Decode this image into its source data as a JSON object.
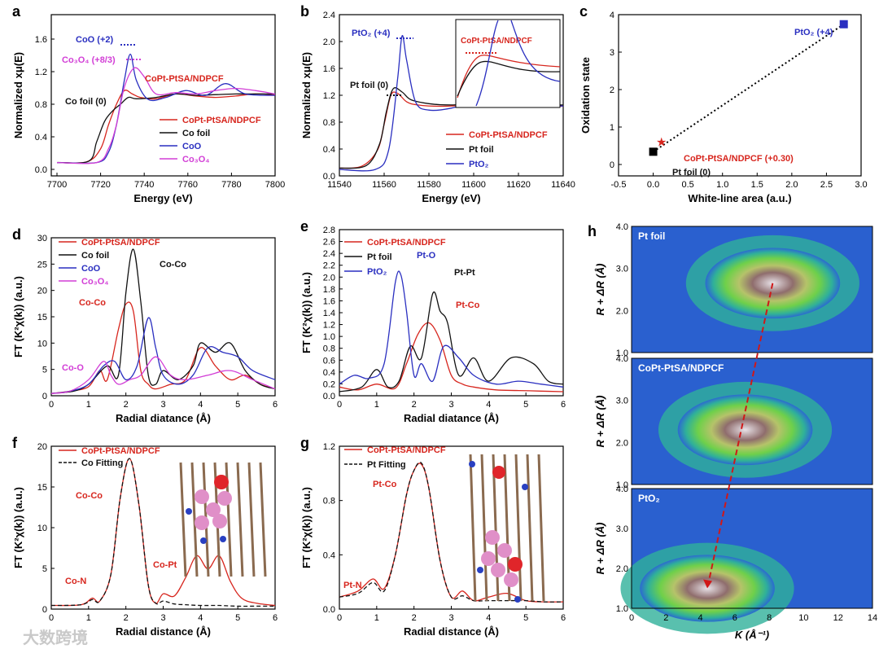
{
  "colors": {
    "red": "#d7261e",
    "black": "#111111",
    "blue": "#2a2fc0",
    "magenta": "#d23ed6",
    "gray": "#777777"
  },
  "watermark": "大数跨境",
  "panels": {
    "a": {
      "letter": "a",
      "xlabel": "Energy (eV)",
      "ylabel": "Normalized xμ(E)",
      "xticks": [
        "7700",
        "7720",
        "7740",
        "7760",
        "7780",
        "7800"
      ],
      "yticks": [
        "0.0",
        "0.4",
        "0.8",
        "1.2",
        "1.6"
      ],
      "labels": {
        "coo": "CoO (+2)",
        "co3o4": "Co₃O₄ (+8/3)",
        "copt": "CoPt-Pt",
        "copt_sub": "SA",
        "copt_tail": "/NDPCF",
        "cofoil": "Co foil (0)"
      },
      "legend": [
        "CoPt-PtSA/NDPCF",
        "Co foil",
        "CoO",
        "Co₃O₄"
      ]
    },
    "b": {
      "letter": "b",
      "xlabel": "Energy (eV)",
      "ylabel": "Normalized xμ(E)",
      "xticks": [
        "11540",
        "11560",
        "11580",
        "11600",
        "11620",
        "11640"
      ],
      "yticks": [
        "0.0",
        "0.4",
        "0.8",
        "1.2",
        "1.6",
        "2.0",
        "2.4"
      ],
      "labels": {
        "pto2": "PtO₂ (+4)",
        "ptfoil": "Pt foil (0)",
        "inset": "CoPt-PtSA/NDPCF"
      },
      "legend": [
        "CoPt-PtSA/NDPCF",
        "Pt foil",
        "PtO₂"
      ]
    },
    "c": {
      "letter": "c",
      "xlabel": "White-line area (a.u.)",
      "ylabel": "Oxidation state",
      "xticks": [
        "-0.5",
        "0.0",
        "0.5",
        "1.0",
        "1.5",
        "2.0",
        "2.5",
        "3.0"
      ],
      "yticks": [
        "0",
        "1",
        "2",
        "3",
        "4"
      ],
      "labels": {
        "pto2": "PtO₂ (+4)",
        "copt": "CoPt-PtSA/NDPCF (+0.30)",
        "ptfoil": "Pt foil (0)"
      }
    },
    "d": {
      "letter": "d",
      "xlabel": "Radial diatance (Å)",
      "ylabel": "FT (K²χ(k)) (a.u.)",
      "xticks": [
        "0",
        "1",
        "2",
        "3",
        "4",
        "5",
        "6"
      ],
      "yticks": [
        "0",
        "5",
        "10",
        "15",
        "20",
        "25",
        "30"
      ],
      "labels": {
        "coco": "Co-Co",
        "coco2": "Co-Co",
        "coo": "Co-O"
      },
      "legend": [
        "CoPt-PtSA/NDPCF",
        "Co foil",
        "CoO",
        "Co₃O₄"
      ]
    },
    "e": {
      "letter": "e",
      "xlabel": "Radial diatance (Å)",
      "ylabel": "FT (K²χ(k)) (a.u.)",
      "xticks": [
        "0",
        "1",
        "2",
        "3",
        "4",
        "5",
        "6"
      ],
      "yticks": [
        "0.0",
        "0.2",
        "0.4",
        "0.6",
        "0.8",
        "1.0",
        "1.2",
        "1.4",
        "1.6",
        "1.8",
        "2.0",
        "2.2",
        "2.4",
        "2.6",
        "2.8"
      ],
      "labels": {
        "pto": "Pt-O",
        "ptpt": "Pt-Pt",
        "ptco": "Pt-Co"
      },
      "legend": [
        "CoPt-PtSA/NDPCF",
        "Pt foil",
        "PtO₂"
      ]
    },
    "f": {
      "letter": "f",
      "xlabel": "Radial distance (Å)",
      "ylabel": "FT (K²χ(k)) (a.u.)",
      "xticks": [
        "0",
        "1",
        "2",
        "3",
        "4",
        "5",
        "6"
      ],
      "yticks": [
        "0",
        "5",
        "10",
        "15",
        "20"
      ],
      "labels": {
        "coco": "Co-Co",
        "con": "Co-N",
        "copt": "Co-Pt"
      },
      "legend": [
        "CoPt-PtSA/NDPCF",
        "Co Fitting"
      ]
    },
    "g": {
      "letter": "g",
      "xlabel": "Radial distance (Å)",
      "ylabel": "FT (K²χ(k)) (a.u.)",
      "xticks": [
        "0",
        "1",
        "2",
        "3",
        "4",
        "5",
        "6"
      ],
      "yticks": [
        "0.0",
        "0.4",
        "0.8",
        "1.2"
      ],
      "labels": {
        "ptco": "Pt-Co",
        "ptn": "Pt-N"
      },
      "legend": [
        "CoPt-PtSA/NDPCF",
        "Pt Fitting"
      ]
    },
    "h": {
      "letter": "h",
      "xlabel": "K (Å⁻¹)",
      "ylabel": "R + ΔR (Å)",
      "xticks": [
        "0",
        "2",
        "4",
        "6",
        "8",
        "10",
        "12",
        "14"
      ],
      "subs": [
        {
          "title": "Pt foil",
          "yticks": [
            "1.0",
            "2.0",
            "3.0",
            "4.0"
          ]
        },
        {
          "title": "CoPt-PtSA/NDPCF",
          "yticks": [
            "1.0",
            "2.0",
            "3.0",
            "4.0"
          ]
        },
        {
          "title": "PtO₂",
          "yticks": [
            "1.0",
            "2.0",
            "3.0",
            "4.0"
          ]
        }
      ]
    }
  },
  "chart_data": [
    {
      "panel": "a",
      "type": "line",
      "xlim": [
        7690,
        7800
      ],
      "ylim": [
        -0.1,
        1.8
      ],
      "series": [
        {
          "name": "CoPt-PtSA/NDPCF",
          "x": [
            7690,
            7705,
            7712,
            7716,
            7720,
            7724,
            7728,
            7732,
            7740,
            7750,
            7760,
            7770,
            7780,
            7790,
            7800
          ],
          "y": [
            0,
            0.01,
            0.2,
            0.55,
            0.85,
            1.05,
            1.0,
            0.95,
            0.93,
            1.0,
            0.97,
            0.95,
            0.97,
            1.0,
            0.99
          ]
        },
        {
          "name": "Co foil",
          "x": [
            7690,
            7706,
            7710,
            7714,
            7718,
            7722,
            7726,
            7730,
            7740,
            7750,
            7760,
            7770,
            7780,
            7790,
            7800
          ],
          "y": [
            0,
            0.02,
            0.3,
            0.6,
            0.75,
            0.85,
            0.95,
            0.93,
            0.95,
            1.0,
            0.98,
            0.99,
            1.0,
            1.0,
            1.0
          ]
        },
        {
          "name": "CoO",
          "x": [
            7690,
            7710,
            7716,
            7720,
            7724,
            7727,
            7730,
            7736,
            7745,
            7755,
            7765,
            7775,
            7785,
            7800
          ],
          "y": [
            0,
            0.0,
            0.15,
            0.55,
            1.2,
            1.58,
            1.2,
            0.92,
            0.95,
            1.05,
            0.98,
            1.15,
            1.0,
            0.98
          ]
        },
        {
          "name": "Co₃O₄",
          "x": [
            7690,
            7710,
            7716,
            7720,
            7724,
            7729,
            7734,
            7740,
            7750,
            7760,
            7770,
            7780,
            7790,
            7800
          ],
          "y": [
            0,
            0.0,
            0.2,
            0.55,
            1.1,
            1.38,
            1.25,
            1.0,
            1.02,
            1.0,
            1.05,
            1.08,
            1.05,
            1.0
          ]
        }
      ]
    },
    {
      "panel": "b",
      "type": "line",
      "xlim": [
        11540,
        11640
      ],
      "ylim": [
        -0.1,
        2.4
      ],
      "series": [
        {
          "name": "CoPt-PtSA/NDPCF",
          "x": [
            11540,
            11550,
            11557,
            11560,
            11563,
            11566,
            11570,
            11575,
            11585,
            11600,
            11620,
            11640
          ],
          "y": [
            0.02,
            0.05,
            0.3,
            0.7,
            1.15,
            1.18,
            1.05,
            1.0,
            0.98,
            1.0,
            1.02,
            0.98
          ]
        },
        {
          "name": "Pt foil",
          "x": [
            11540,
            11552,
            11558,
            11561,
            11564,
            11568,
            11572,
            11580,
            11590,
            11600,
            11620,
            11640
          ],
          "y": [
            0.02,
            0.06,
            0.4,
            0.9,
            1.25,
            1.2,
            1.08,
            1.02,
            1.0,
            1.02,
            1.0,
            1.0
          ]
        },
        {
          "name": "PtO₂",
          "x": [
            11540,
            11556,
            11562,
            11566,
            11568,
            11570,
            11574,
            11580,
            11590,
            11600,
            11615,
            11625,
            11640
          ],
          "y": [
            0.0,
            0.0,
            0.3,
            1.4,
            2.07,
            1.7,
            1.05,
            0.92,
            0.95,
            1.05,
            1.18,
            1.05,
            0.98
          ]
        }
      ]
    },
    {
      "panel": "c",
      "type": "scatter",
      "xlim": [
        -0.5,
        3.0
      ],
      "ylim": [
        -0.4,
        4.3
      ],
      "series": [
        {
          "name": "Pt foil",
          "x": [
            0.0
          ],
          "y": [
            0
          ]
        },
        {
          "name": "CoPt-PtSA/NDPCF",
          "x": [
            0.12
          ],
          "y": [
            0.3
          ]
        },
        {
          "name": "PtO₂",
          "x": [
            2.75
          ],
          "y": [
            4
          ]
        }
      ]
    },
    {
      "panel": "d",
      "type": "line",
      "xlim": [
        0,
        6
      ],
      "ylim": [
        -0.5,
        34
      ],
      "series": [
        {
          "name": "CoPt-PtSA/NDPCF",
          "x": [
            0,
            0.5,
            1.0,
            1.3,
            1.5,
            1.8,
            2.0,
            2.2,
            2.4,
            2.6,
            2.8,
            3.2,
            3.6,
            4.0,
            4.4,
            4.8,
            5.2,
            5.6,
            6
          ],
          "y": [
            0,
            0.5,
            1.5,
            5,
            3,
            14,
            19.5,
            18,
            5,
            2,
            1,
            2,
            3,
            10,
            6,
            3,
            4,
            2,
            1
          ]
        },
        {
          "name": "Co foil",
          "x": [
            0,
            0.6,
            1.0,
            1.5,
            1.8,
            2.0,
            2.2,
            2.4,
            2.6,
            2.8,
            3.0,
            3.4,
            3.8,
            4.0,
            4.4,
            4.8,
            5.2,
            5.6,
            6
          ],
          "y": [
            0,
            0.5,
            2,
            6,
            4,
            22,
            31.5,
            20,
            4,
            2,
            5,
            3,
            6,
            11,
            9,
            11,
            5,
            2,
            1
          ]
        },
        {
          "name": "CoO",
          "x": [
            0,
            0.5,
            1.0,
            1.4,
            1.7,
            2.0,
            2.3,
            2.6,
            2.8,
            3.0,
            3.4,
            3.8,
            4.2,
            4.6,
            5.0,
            5.4,
            6
          ],
          "y": [
            0,
            0.5,
            2,
            6,
            7,
            3,
            6,
            16.5,
            10,
            4,
            2,
            4,
            10,
            9,
            8,
            5,
            3
          ]
        },
        {
          "name": "Co₃O₄",
          "x": [
            0,
            0.5,
            1.0,
            1.4,
            1.6,
            1.8,
            2.1,
            2.4,
            2.8,
            3.2,
            3.6,
            4.2,
            4.8,
            5.4,
            6
          ],
          "y": [
            0,
            0.5,
            3,
            7,
            4,
            2,
            3,
            4,
            8,
            4,
            3,
            4,
            5,
            3,
            1
          ]
        }
      ]
    },
    {
      "panel": "e",
      "type": "line",
      "xlim": [
        0,
        6
      ],
      "ylim": [
        -0.05,
        2.8
      ],
      "series": [
        {
          "name": "CoPt-PtSA/NDPCF",
          "x": [
            0,
            0.5,
            1.0,
            1.5,
            1.8,
            2.1,
            2.4,
            2.7,
            3.0,
            3.3,
            3.6,
            4.2,
            4.8,
            5.4,
            6
          ],
          "y": [
            0.1,
            0.05,
            0.15,
            0.08,
            0.5,
            1.0,
            1.2,
            0.9,
            0.3,
            0.15,
            0.1,
            0.05,
            0.04,
            0.03,
            0.02
          ]
        },
        {
          "name": "Pt foil",
          "x": [
            0,
            0.6,
            1.0,
            1.3,
            1.6,
            1.9,
            2.2,
            2.5,
            2.7,
            2.9,
            3.2,
            3.6,
            4.0,
            4.6,
            5.2,
            5.6,
            6
          ],
          "y": [
            0.02,
            0.1,
            0.4,
            0.1,
            0.2,
            0.8,
            0.6,
            1.7,
            1.4,
            1.2,
            0.3,
            0.6,
            0.2,
            0.6,
            0.5,
            0.2,
            0.15
          ]
        },
        {
          "name": "PtO₂",
          "x": [
            0,
            0.4,
            0.8,
            1.2,
            1.5,
            1.65,
            1.8,
            2.0,
            2.2,
            2.5,
            2.8,
            3.2,
            3.6,
            4.2,
            4.8,
            5.4,
            6
          ],
          "y": [
            0.15,
            0.3,
            0.25,
            0.5,
            1.9,
            2.02,
            1.4,
            0.3,
            0.5,
            0.2,
            0.8,
            0.6,
            0.3,
            0.15,
            0.2,
            0.15,
            0.1
          ]
        }
      ]
    },
    {
      "panel": "f",
      "type": "line",
      "xlim": [
        0,
        6
      ],
      "ylim": [
        -0.3,
        22
      ],
      "series": [
        {
          "name": "CoPt-PtSA/NDPCF",
          "x": [
            0,
            0.8,
            1.1,
            1.3,
            1.6,
            1.85,
            2.1,
            2.35,
            2.6,
            2.8,
            3.0,
            3.3,
            3.6,
            3.9,
            4.2,
            4.5,
            4.8,
            5.1,
            5.5,
            6
          ],
          "y": [
            0.2,
            0.3,
            1.2,
            0.8,
            4.5,
            15,
            20.3,
            14,
            3,
            0.5,
            1.8,
            1.5,
            4,
            7,
            5.2,
            7,
            3.5,
            1.2,
            0.5,
            0.2
          ]
        },
        {
          "name": "Co Fitting",
          "x": [
            0,
            0.8,
            1.1,
            1.3,
            1.6,
            1.85,
            2.1,
            2.35,
            2.6,
            2.8,
            3.0,
            3.3,
            3.6,
            4.0,
            4.5,
            5,
            5.5,
            6
          ],
          "y": [
            0.2,
            0.3,
            1.0,
            0.8,
            4.5,
            15,
            20.3,
            14,
            3,
            0.5,
            0.8,
            0.4,
            0.3,
            0.2,
            0.2,
            0.1,
            0.1,
            0.1
          ]
        }
      ]
    },
    {
      "panel": "g",
      "type": "line",
      "xlim": [
        0,
        6
      ],
      "ylim": [
        -0.05,
        1.3
      ],
      "series": [
        {
          "name": "CoPt-PtSA/NDPCF",
          "x": [
            0,
            0.5,
            0.9,
            1.2,
            1.5,
            1.8,
            2.0,
            2.2,
            2.4,
            2.7,
            3.0,
            3.3,
            3.6,
            4.0,
            4.5,
            5.0,
            5.5,
            6
          ],
          "y": [
            0.05,
            0.1,
            0.2,
            0.12,
            0.4,
            0.9,
            1.1,
            1.15,
            0.95,
            0.35,
            0.05,
            0.1,
            0.02,
            0.05,
            0.08,
            0.02,
            0.01,
            0.01
          ]
        },
        {
          "name": "Pt Fitting",
          "x": [
            0,
            0.5,
            0.9,
            1.2,
            1.5,
            1.8,
            2.0,
            2.2,
            2.4,
            2.7,
            3.0,
            3.3,
            3.6,
            4.0,
            4.5,
            5.0,
            5.5,
            6
          ],
          "y": [
            0.05,
            0.08,
            0.17,
            0.1,
            0.4,
            0.9,
            1.1,
            1.16,
            0.95,
            0.35,
            0.05,
            0.06,
            0.02,
            0.02,
            0.02,
            0.02,
            0.01,
            0.01
          ]
        }
      ]
    },
    {
      "panel": "h",
      "type": "heatmap",
      "xlim": [
        0,
        14
      ],
      "ylim": [
        1.0,
        4.0
      ],
      "maxima": [
        {
          "name": "Pt foil",
          "k": 8.2,
          "r": 2.65
        },
        {
          "name": "CoPt-PtSA/NDPCF",
          "k": 6.6,
          "r": 2.3
        },
        {
          "name": "PtO₂",
          "k": 4.4,
          "r": 1.5
        }
      ]
    }
  ]
}
